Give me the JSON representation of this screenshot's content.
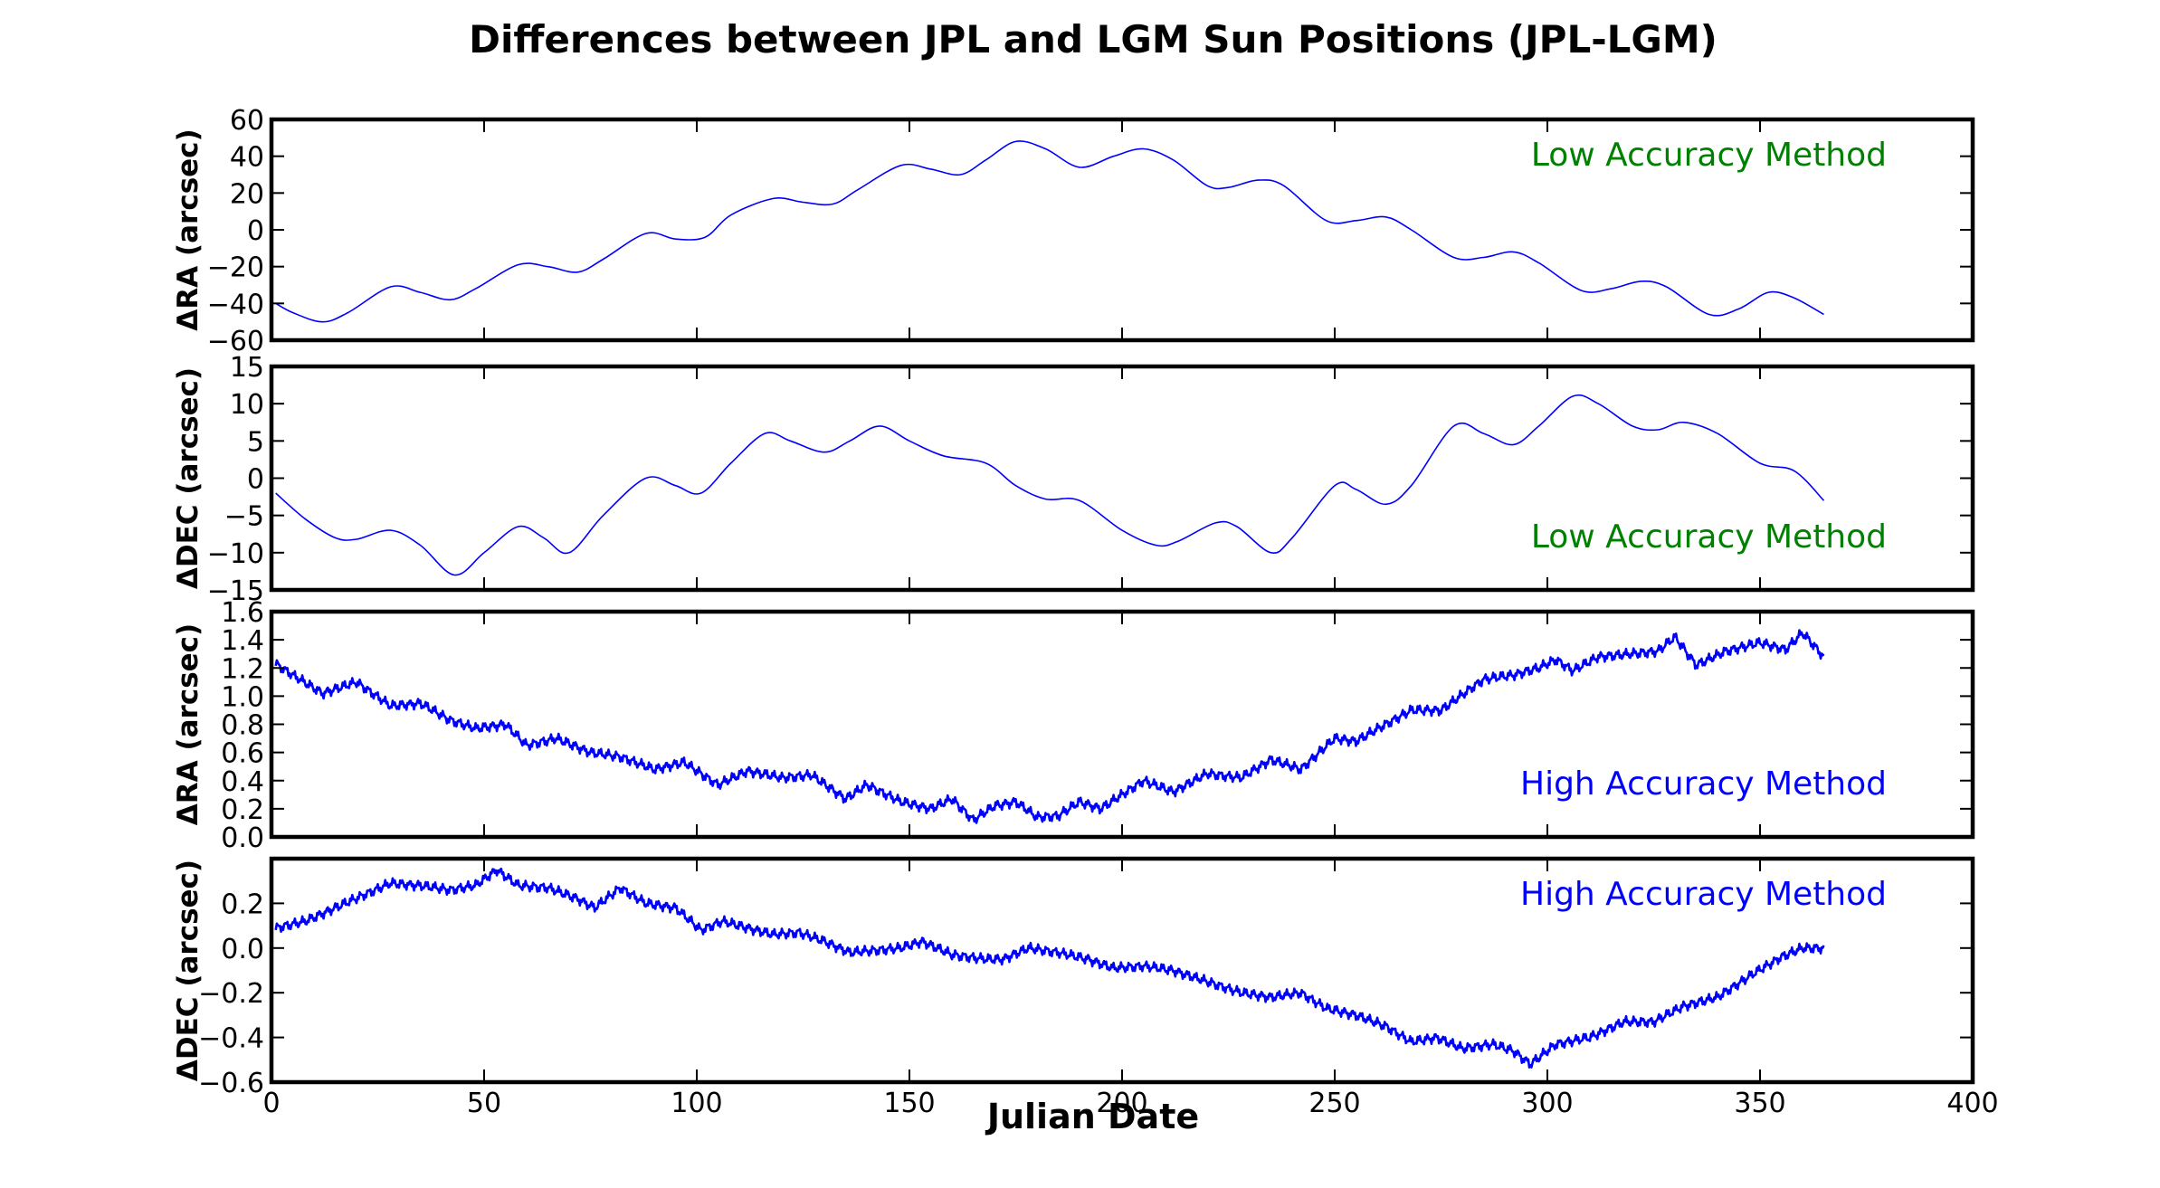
{
  "chart_data": {
    "type": "line",
    "title": "Differences between JPL and LGM Sun Positions (JPL-LGM)",
    "xlabel": "Julian Date",
    "xlim": [
      0,
      400
    ],
    "xticks": [
      "0",
      "50",
      "100",
      "150",
      "200",
      "250",
      "300",
      "350",
      "400"
    ],
    "grid": false,
    "panels": [
      {
        "ylabel": "ΔRA (arcsec)",
        "ylim": [
          -60,
          60
        ],
        "yticks": [
          "60",
          "40",
          "20",
          "0",
          "−20",
          "−40",
          "−60"
        ],
        "annotation": "Low Accuracy Method",
        "annotation_color": "#008000",
        "annotation_position": "top-right",
        "series_color": "#0000ff",
        "noisy": false,
        "series": {
          "x": [
            1,
            5,
            12,
            18,
            28,
            35,
            42,
            48,
            58,
            65,
            72,
            78,
            88,
            95,
            102,
            108,
            118,
            125,
            132,
            138,
            148,
            155,
            162,
            168,
            175,
            182,
            190,
            198,
            205,
            212,
            220,
            225,
            232,
            238,
            248,
            255,
            262,
            268,
            278,
            285,
            292,
            298,
            308,
            315,
            322,
            328,
            338,
            345,
            352,
            358,
            365
          ],
          "y": [
            -40,
            -45,
            -50,
            -45,
            -31,
            -34,
            -38,
            -32,
            -19,
            -20,
            -23,
            -16,
            -2,
            -5,
            -4,
            8,
            17,
            15,
            14,
            22,
            35,
            33,
            30,
            38,
            48,
            44,
            34,
            40,
            44,
            38,
            24,
            23,
            27,
            24,
            5,
            5,
            7,
            0,
            -15,
            -15,
            -12,
            -18,
            -33,
            -32,
            -28,
            -31,
            -46,
            -43,
            -34,
            -37,
            -46
          ]
        }
      },
      {
        "ylabel": "ΔDEC (arcsec)",
        "ylim": [
          -15,
          15
        ],
        "yticks": [
          "15",
          "10",
          "5",
          "0",
          "−5",
          "−10",
          "−15"
        ],
        "annotation": "Low Accuracy Method",
        "annotation_color": "#008000",
        "annotation_position": "bottom-right",
        "series_color": "#0000ff",
        "noisy": false,
        "series": {
          "x": [
            1,
            8,
            15,
            20,
            28,
            35,
            43,
            50,
            58,
            64,
            70,
            78,
            88,
            95,
            101,
            108,
            116,
            122,
            130,
            136,
            143,
            150,
            158,
            168,
            175,
            182,
            190,
            200,
            208,
            213,
            222,
            227,
            235,
            240,
            250,
            255,
            262,
            268,
            278,
            285,
            292,
            298,
            306,
            312,
            320,
            326,
            332,
            340,
            350,
            358,
            365
          ],
          "y": [
            -2,
            -5.5,
            -8,
            -8.2,
            -7,
            -9,
            -13,
            -10,
            -6.5,
            -8,
            -10,
            -5,
            0,
            -1,
            -2,
            2,
            6,
            5,
            3.5,
            5,
            7,
            5,
            3,
            2,
            -1,
            -2.8,
            -3,
            -7,
            -9,
            -8.5,
            -6,
            -6.5,
            -10,
            -8,
            -1,
            -1.5,
            -3.5,
            -1,
            7,
            6,
            4.5,
            7,
            11,
            10,
            7,
            6.5,
            7.5,
            6,
            2,
            1,
            -3
          ]
        }
      },
      {
        "ylabel": "ΔRA (arcsec)",
        "ylim": [
          0.0,
          1.6
        ],
        "yticks": [
          "1.6",
          "1.4",
          "1.2",
          "1.0",
          "0.8",
          "0.6",
          "0.4",
          "0.2",
          "0.0"
        ],
        "annotation": "High Accuracy Method",
        "annotation_color": "#0000ff",
        "annotation_position": "bottom-right",
        "series_color": "#0000ff",
        "noisy": true,
        "noise_amplitude": 0.04,
        "series": {
          "x": [
            1,
            5,
            12,
            20,
            28,
            35,
            42,
            48,
            55,
            60,
            67,
            75,
            82,
            90,
            97,
            105,
            112,
            120,
            127,
            135,
            140,
            148,
            155,
            160,
            165,
            170,
            175,
            180,
            185,
            190,
            195,
            200,
            205,
            212,
            220,
            228,
            235,
            242,
            250,
            255,
            262,
            268,
            275,
            285,
            292,
            298,
            302,
            306,
            312,
            320,
            326,
            330,
            335,
            342,
            350,
            356,
            360,
            365
          ],
          "y": [
            1.23,
            1.15,
            1.02,
            1.1,
            0.93,
            0.95,
            0.83,
            0.77,
            0.8,
            0.65,
            0.7,
            0.6,
            0.57,
            0.48,
            0.53,
            0.37,
            0.47,
            0.42,
            0.44,
            0.27,
            0.37,
            0.25,
            0.2,
            0.27,
            0.12,
            0.22,
            0.25,
            0.14,
            0.15,
            0.25,
            0.2,
            0.3,
            0.4,
            0.32,
            0.45,
            0.42,
            0.55,
            0.48,
            0.7,
            0.68,
            0.8,
            0.9,
            0.9,
            1.12,
            1.15,
            1.2,
            1.26,
            1.18,
            1.28,
            1.3,
            1.32,
            1.42,
            1.22,
            1.32,
            1.38,
            1.33,
            1.45,
            1.28
          ]
        }
      },
      {
        "ylabel": "ΔDEC (arcsec)",
        "ylim": [
          -0.6,
          0.4
        ],
        "yticks": [
          "0.2",
          "0.0",
          "−0.2",
          "−0.4",
          "−0.6"
        ],
        "annotation": "High Accuracy Method",
        "annotation_color": "#0000ff",
        "annotation_position": "top-right",
        "series_color": "#0000ff",
        "noisy": true,
        "noise_amplitude": 0.025,
        "series": {
          "x": [
            1,
            8,
            15,
            22,
            28,
            35,
            42,
            48,
            53,
            58,
            65,
            72,
            76,
            82,
            88,
            95,
            101,
            106,
            112,
            118,
            124,
            130,
            136,
            142,
            148,
            153,
            160,
            168,
            172,
            178,
            185,
            192,
            198,
            205,
            212,
            220,
            228,
            235,
            242,
            248,
            255,
            262,
            268,
            274,
            280,
            287,
            292,
            296,
            302,
            310,
            318,
            325,
            332,
            340,
            348,
            355,
            360,
            365
          ],
          "y": [
            0.09,
            0.12,
            0.18,
            0.24,
            0.29,
            0.28,
            0.26,
            0.28,
            0.35,
            0.28,
            0.27,
            0.22,
            0.18,
            0.27,
            0.2,
            0.18,
            0.08,
            0.12,
            0.09,
            0.06,
            0.07,
            0.03,
            -0.02,
            -0.01,
            0.0,
            0.03,
            -0.03,
            -0.05,
            -0.05,
            0.0,
            -0.02,
            -0.05,
            -0.09,
            -0.08,
            -0.1,
            -0.15,
            -0.2,
            -0.22,
            -0.2,
            -0.27,
            -0.3,
            -0.35,
            -0.42,
            -0.4,
            -0.45,
            -0.43,
            -0.46,
            -0.52,
            -0.43,
            -0.4,
            -0.33,
            -0.33,
            -0.26,
            -0.22,
            -0.12,
            -0.04,
            0.0,
            0.0
          ]
        }
      }
    ]
  }
}
